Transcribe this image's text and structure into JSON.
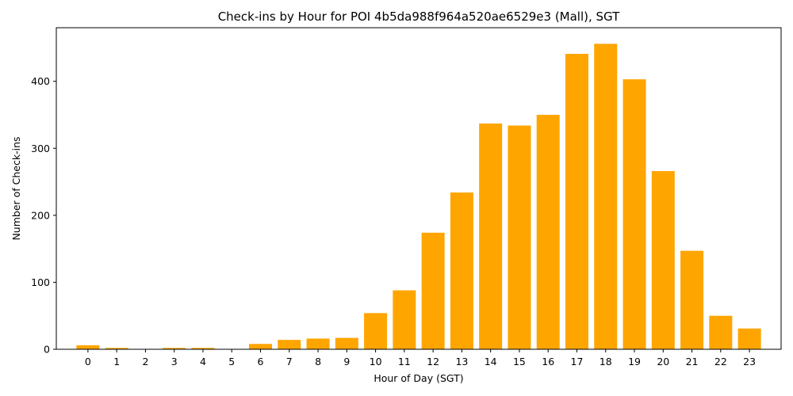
{
  "chart_data": {
    "type": "bar",
    "title": "Check-ins by Hour for POI 4b5da988f964a520ae6529e3 (Mall), SGT",
    "xlabel": "Hour of Day (SGT)",
    "ylabel": "Number of Check-ins",
    "categories": [
      "0",
      "1",
      "2",
      "3",
      "4",
      "5",
      "6",
      "7",
      "8",
      "9",
      "10",
      "11",
      "12",
      "13",
      "14",
      "15",
      "16",
      "17",
      "18",
      "19",
      "20",
      "21",
      "22",
      "23"
    ],
    "values": [
      6,
      2,
      0,
      2,
      2,
      0,
      8,
      14,
      16,
      17,
      54,
      88,
      174,
      234,
      337,
      334,
      350,
      441,
      456,
      403,
      266,
      147,
      50,
      31
    ],
    "ylim": [
      0,
      480
    ],
    "yticks": [
      0,
      100,
      200,
      300,
      400
    ],
    "bar_color": "#ffa500",
    "grid": false,
    "legend": "none"
  }
}
